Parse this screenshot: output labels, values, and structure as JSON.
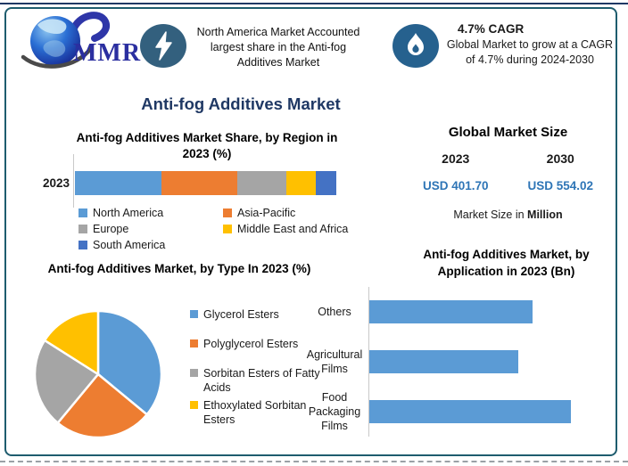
{
  "frame": {
    "border_color": "#1E5C6E",
    "accent_line_color": "#1F3864"
  },
  "header": {
    "logo_text": "MMR",
    "card1": {
      "icon": "lightning-bolt",
      "text": "North America Market Accounted largest share in the Anti-fog Additives Market"
    },
    "card2": {
      "icon": "flame",
      "title": "4.7% CAGR",
      "text": "Global Market to grow at a CAGR of 4.7% during 2024-2030"
    }
  },
  "main_title": "Anti-fog Additives Market",
  "market_size": {
    "title": "Global Market Size",
    "year_left": "2023",
    "year_right": "2030",
    "value_left": "USD 401.70",
    "value_right": "USD 554.02",
    "value_color": "#2E75B6",
    "footnote_text": "Market Size in ",
    "footnote_bold": "Million"
  },
  "chart_data": [
    {
      "id": "region_share",
      "type": "bar",
      "subtype": "horizontal-stacked",
      "title": "Anti-fog Additives Market Share, by Region in 2023 (%)",
      "row_label": "2023",
      "legend_position": "bottom",
      "series": [
        {
          "name": "North America",
          "value": 33,
          "color": "#5B9BD5"
        },
        {
          "name": "Asia-Pacific",
          "value": 29,
          "color": "#ED7D31"
        },
        {
          "name": "Europe",
          "value": 19,
          "color": "#A5A5A5"
        },
        {
          "name": "Middle East and Africa",
          "value": 11,
          "color": "#FFC000"
        },
        {
          "name": "South America",
          "value": 8,
          "color": "#4472C4"
        }
      ]
    },
    {
      "id": "type_share",
      "type": "pie",
      "title": "Anti-fog Additives Market, by Type In 2023 (%)",
      "legend_position": "right",
      "slices": [
        {
          "name": "Glycerol Esters",
          "value": 36,
          "color": "#5B9BD5"
        },
        {
          "name": "Polyglycerol Esters",
          "value": 25,
          "color": "#ED7D31"
        },
        {
          "name": "Sorbitan Esters of Fatty Acids",
          "value": 23,
          "color": "#A5A5A5"
        },
        {
          "name": "Ethoxylated Sorbitan Esters",
          "value": 16,
          "color": "#FFC000"
        }
      ]
    },
    {
      "id": "application",
      "type": "bar",
      "subtype": "horizontal",
      "title": "Anti-fog Additives Market, by Application in 2023 (Bn)",
      "categories": [
        "Others",
        "Agricultural Films",
        "Food Packaging Films"
      ],
      "values_relative": [
        0.81,
        0.74,
        1.0
      ],
      "bar_color": "#5B9BD5",
      "axis_labels_shown": false
    }
  ]
}
